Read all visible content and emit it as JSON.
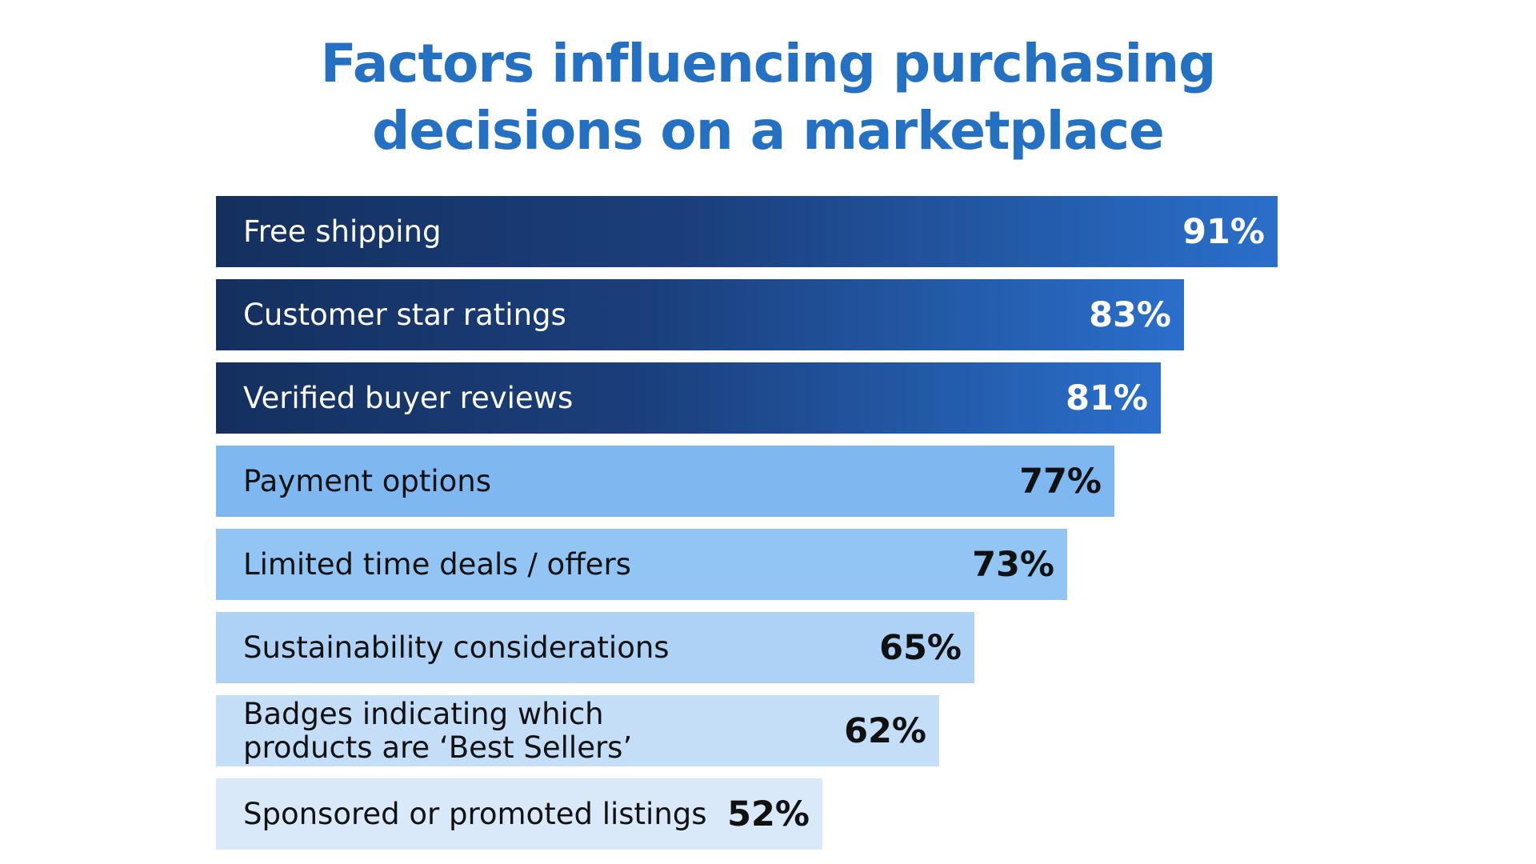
{
  "chart_data": {
    "type": "bar",
    "orientation": "horizontal",
    "title": "Factors influencing purchasing decisions on a marketplace",
    "title_lines": [
      "Factors influencing purchasing",
      "decisions on a marketplace"
    ],
    "categories": [
      "Free shipping",
      "Customer star ratings",
      "Verified buyer reviews",
      "Payment options",
      "Limited time deals / offers",
      "Sustainability considerations",
      "Badges indicating which\nproducts are ‘Best Sellers’",
      "Sponsored or promoted listings"
    ],
    "values": [
      91,
      83,
      81,
      77,
      73,
      65,
      62,
      52
    ],
    "value_labels": [
      "91%",
      "83%",
      "81%",
      "77%",
      "73%",
      "65%",
      "62%",
      "52%"
    ],
    "unit": "%",
    "xlim": [
      0,
      100
    ],
    "grid": false,
    "legend": "none",
    "bar_colors": [
      "dark-gradient",
      "dark-gradient",
      "dark-gradient",
      "#7fb8f1",
      "#92c4f4",
      "#aed2f6",
      "#c5def8",
      "#d9e9fa"
    ]
  },
  "colors": {
    "title": "#2471c3",
    "dark_gradient_start": "#14305f",
    "dark_gradient_end": "#2a6fcb",
    "light_bar_text": "#111111",
    "dark_bar_text": "#ffffff"
  }
}
